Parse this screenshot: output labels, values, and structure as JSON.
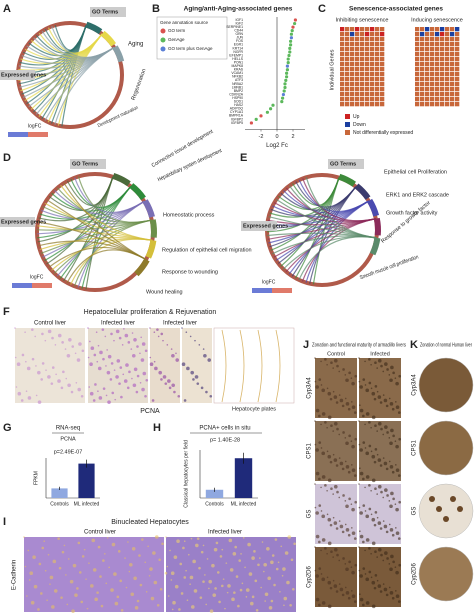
{
  "panels": {
    "a": {
      "letter": "A",
      "go_terms": "GO Terms",
      "expressed_genes": "Expressed genes",
      "terms": [
        "Aging",
        "Regeneration",
        "Development maturation"
      ],
      "legend": "logFC"
    },
    "b": {
      "letter": "B"
    },
    "c": {
      "letter": "C",
      "title": "Senescence-associated genes",
      "columns": [
        "Inhibiting senescence",
        "Inducing senescence"
      ],
      "y_label": "Individual Genes",
      "legend": [
        "Up",
        "Down",
        "Not differentially expressed"
      ]
    },
    "d": {
      "letter": "D",
      "go_terms": "GO Terms",
      "expressed_genes": "Expressed genes",
      "terms": [
        "Connective tissue development",
        "Hepatobiliary system development",
        "Homeostatic process",
        "Regulation of epithelial cell migration",
        "Response to wounding",
        "Wound healing"
      ],
      "legend": "logFC"
    },
    "e": {
      "letter": "E",
      "go_terms": "GO Terms",
      "expressed_genes": "Expressed genes",
      "terms": [
        "Epithelial cell Proliferation",
        "ERK1 and ERK2 cascade",
        "Growth factor activity",
        "Response to growth factor",
        "Smooth muscle cell proliferation"
      ],
      "legend": "logFC"
    },
    "f": {
      "letter": "F",
      "title": "Hepatocellular proliferation & Rejuvenation",
      "labels": [
        "Control liver",
        "Infected liver",
        "Infected liver"
      ],
      "stain": "PCNA",
      "annotation": "Hepatocyte plates"
    },
    "g": {
      "letter": "G"
    },
    "h": {
      "letter": "H"
    },
    "i": {
      "letter": "I",
      "title": "Binucleated Hepatocytes",
      "labels": [
        "Control liver",
        "Infected liver"
      ],
      "stain": "E-Cadherin"
    },
    "j": {
      "letter": "J",
      "title": "Zonation and functional maturity of armadillo livers",
      "columns": [
        "Control",
        "Infected"
      ],
      "rows": [
        "Cyp3A4",
        "CPS1",
        "GS",
        "Cyp2D6"
      ]
    },
    "k": {
      "letter": "K",
      "title": "Zonation of normal Human liver",
      "rows": [
        "Cyp3A4",
        "CPS1",
        "GS",
        "Cyp2D6"
      ]
    }
  },
  "chart_data": [
    {
      "type": "dot",
      "title": "Aging/anti-Aging-associated genes",
      "legend_title": "Gene annotation source",
      "legend": [
        {
          "name": "GO term",
          "color": "#d9534f"
        },
        {
          "name": "GenAge",
          "color": "#5cb85c"
        },
        {
          "name": "GO term plus GenAge",
          "color": "#5b7fd6"
        }
      ],
      "categories": [
        "IGF1",
        "IGF2",
        "SERPINE1",
        "CD44",
        "GRN",
        "JUN",
        "FOS",
        "EGR1",
        "KRT14",
        "NGFR",
        "EFEMP1",
        "HELLS",
        "PON1",
        "MAPK8",
        "KRAS",
        "VCAM1",
        "NFKB2",
        "ATF3",
        "NR5A2",
        "LMNB1",
        "BMP2",
        "CDKN2A",
        "HSP90",
        "SOD1",
        "HAS2",
        "ADIPOQ",
        "CYP1A1",
        "BMPR1A",
        "IGFBP2",
        "IGFBP5"
      ],
      "values": [
        2.3,
        2.2,
        2.0,
        1.9,
        1.8,
        1.8,
        1.7,
        1.7,
        1.6,
        1.6,
        1.5,
        1.4,
        1.4,
        1.3,
        1.3,
        1.2,
        1.2,
        1.1,
        1.0,
        1.0,
        0.9,
        0.8,
        0.7,
        0.6,
        -0.5,
        -0.8,
        -1.2,
        -2.0,
        -2.6,
        -3.2
      ],
      "colors": [
        "#d9534f",
        "#5cb85c",
        "#d9534f",
        "#5cb85c",
        "#5cb85c",
        "#5b7fd6",
        "#5cb85c",
        "#5cb85c",
        "#5cb85c",
        "#5cb85c",
        "#5cb85c",
        "#5cb85c",
        "#5cb85c",
        "#5b7fd6",
        "#5cb85c",
        "#5cb85c",
        "#5cb85c",
        "#5cb85c",
        "#5cb85c",
        "#5cb85c",
        "#5cb85c",
        "#5b7fd6",
        "#5cb85c",
        "#5cb85c",
        "#5cb85c",
        "#5cb85c",
        "#5cb85c",
        "#d9534f",
        "#5cb85c",
        "#d9534f"
      ],
      "xlabel": "Log2 Fc",
      "xlim": [
        -4,
        3.5
      ],
      "xticks": [
        -2,
        0,
        2
      ]
    },
    {
      "type": "bar",
      "title": "RNA-seq",
      "subtitle": "PCNA",
      "annotation": "p=2.49E-07",
      "ylabel": "FPKM",
      "categories": [
        "Controls",
        "ML infected"
      ],
      "values": [
        1.2,
        4.3
      ],
      "errors": [
        0.2,
        0.5
      ],
      "colors": [
        "#8fa8e0",
        "#1f2a7a"
      ],
      "ylim": [
        0,
        5
      ]
    },
    {
      "type": "bar",
      "title": "PCNA+ cells in situ",
      "annotation": "p= 1.40E-28",
      "ylabel": "Classical hepatocytes per field",
      "categories": [
        "Controls",
        "ML infected"
      ],
      "values": [
        1.2,
        5.8
      ],
      "errors": [
        0.3,
        0.8
      ],
      "colors": [
        "#8fa8e0",
        "#1f2a7a"
      ],
      "ylim": [
        0,
        7
      ]
    }
  ]
}
